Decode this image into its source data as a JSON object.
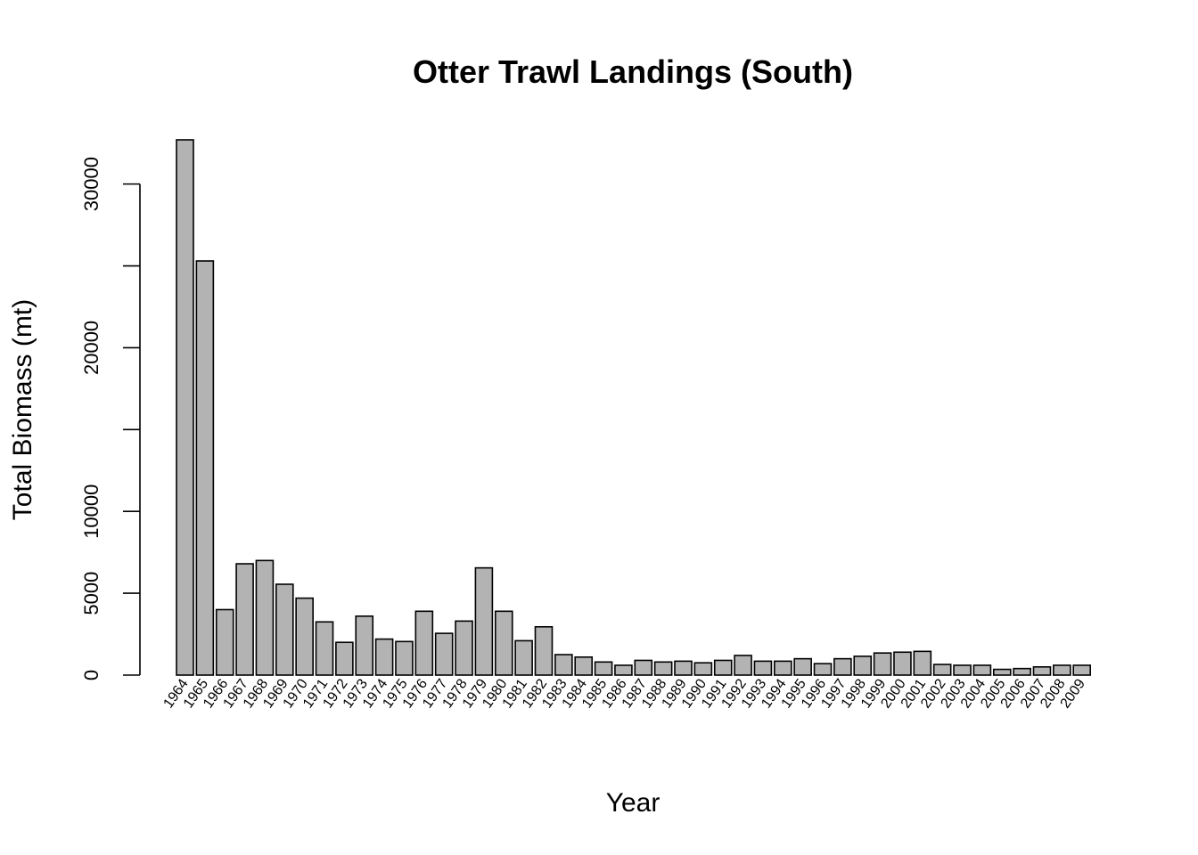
{
  "chart_data": {
    "type": "bar",
    "title": "Otter Trawl Landings (South)",
    "xlabel": "Year",
    "ylabel": "Total Biomass (mt)",
    "ylim": [
      0,
      32700
    ],
    "yticks": [
      0,
      5000,
      10000,
      15000,
      20000,
      25000,
      30000
    ],
    "ytick_labels": [
      "0",
      "5000",
      "10000",
      "",
      "20000",
      "",
      "30000"
    ],
    "grid": false,
    "bar_color": "#b3b3b3",
    "categories": [
      "1964",
      "1965",
      "1966",
      "1967",
      "1968",
      "1969",
      "1970",
      "1971",
      "1972",
      "1973",
      "1974",
      "1975",
      "1976",
      "1977",
      "1978",
      "1979",
      "1980",
      "1981",
      "1982",
      "1983",
      "1984",
      "1985",
      "1986",
      "1987",
      "1988",
      "1989",
      "1990",
      "1991",
      "1992",
      "1993",
      "1994",
      "1995",
      "1996",
      "1997",
      "1998",
      "1999",
      "2000",
      "2001",
      "2002",
      "2003",
      "2004",
      "2005",
      "2006",
      "2007",
      "2008",
      "2009"
    ],
    "values": [
      32700,
      25300,
      4000,
      6800,
      7000,
      5550,
      4700,
      3250,
      2000,
      3600,
      2200,
      2050,
      3900,
      2550,
      3300,
      6550,
      3900,
      2100,
      2950,
      1250,
      1100,
      800,
      600,
      900,
      800,
      850,
      750,
      900,
      1200,
      850,
      850,
      1000,
      700,
      1000,
      1150,
      1350,
      1400,
      1450,
      650,
      600,
      600,
      350,
      400,
      500,
      600,
      600
    ]
  }
}
